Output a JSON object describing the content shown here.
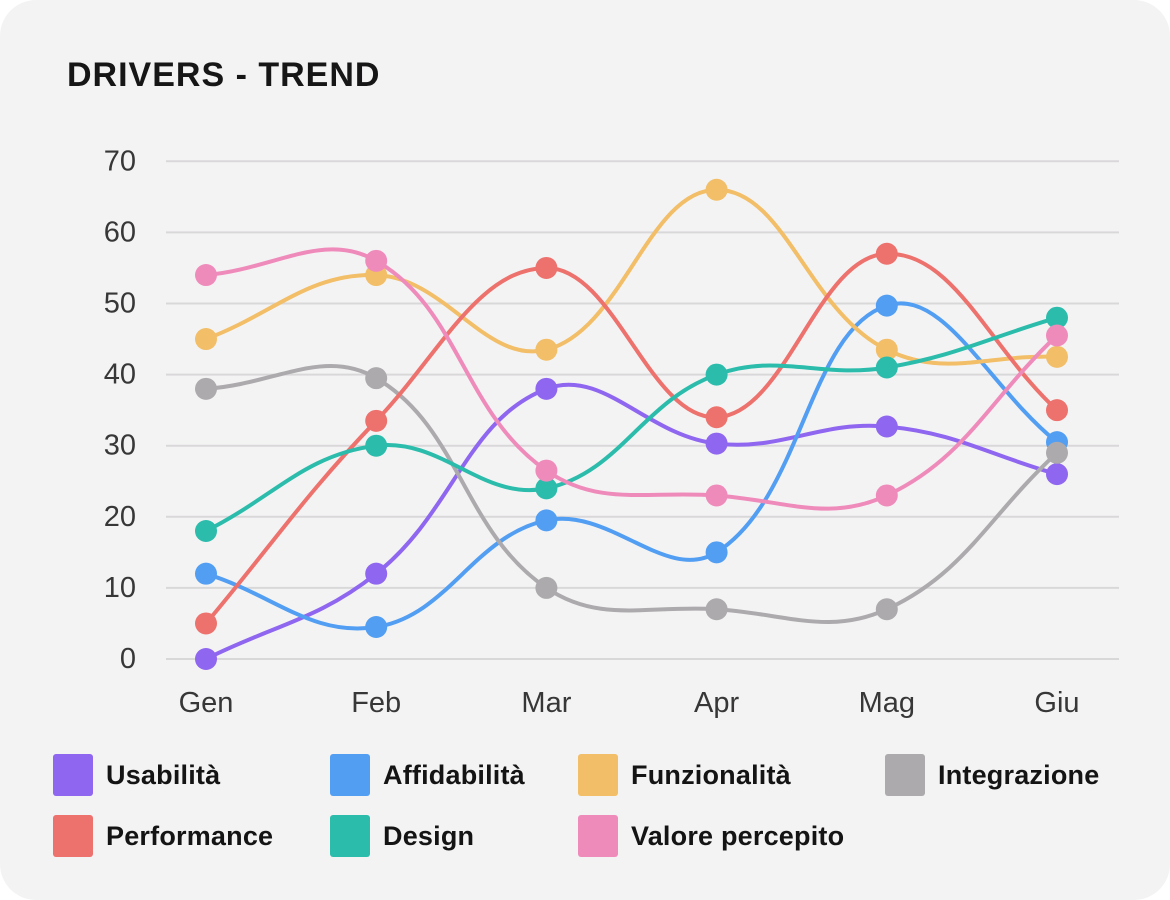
{
  "title": "DRIVERS - TREND",
  "chart_data": {
    "type": "line",
    "title": "DRIVERS - TREND",
    "categories": [
      "Gen",
      "Feb",
      "Mar",
      "Apr",
      "Mag",
      "Giu"
    ],
    "series": [
      {
        "name": "Usabilità",
        "color": "#8f66ef",
        "values": [
          0,
          12,
          38,
          30.3,
          32.7,
          26
        ]
      },
      {
        "name": "Affidabilità",
        "color": "#519ef3",
        "values": [
          12,
          4.5,
          19.5,
          15,
          49.7,
          30.5
        ]
      },
      {
        "name": "Funzionalità",
        "color": "#f2be67",
        "values": [
          45,
          54,
          43.5,
          66,
          43.5,
          42.5
        ]
      },
      {
        "name": "Integrazione",
        "color": "#acaaac",
        "values": [
          38,
          39.5,
          10,
          7,
          7,
          29
        ]
      },
      {
        "name": "Performance",
        "color": "#ed716c",
        "values": [
          5,
          33.5,
          55,
          34,
          57,
          35
        ]
      },
      {
        "name": "Design",
        "color": "#2bbcac",
        "values": [
          18,
          30,
          24,
          40,
          41,
          48
        ]
      },
      {
        "name": "Valore percepito",
        "color": "#ef8bbb",
        "values": [
          54,
          56,
          26.5,
          23,
          23,
          45.5
        ]
      }
    ],
    "ylim": [
      0,
      70
    ],
    "yticks": [
      0,
      10,
      20,
      30,
      40,
      50,
      60,
      70
    ],
    "grid": "horizontal",
    "legend_position": "bottom",
    "line_tension": 0.4
  },
  "legend_rows": [
    [
      "Usabilità",
      "Affidabilità",
      "Funzionalità",
      "Integrazione"
    ],
    [
      "Performance",
      "Design",
      "Valore percepito"
    ]
  ],
  "style": {
    "card_bg": "#f4f3f4",
    "grid_color": "#d9d8d9",
    "tick_color": "#373737",
    "title_color": "#161616"
  }
}
